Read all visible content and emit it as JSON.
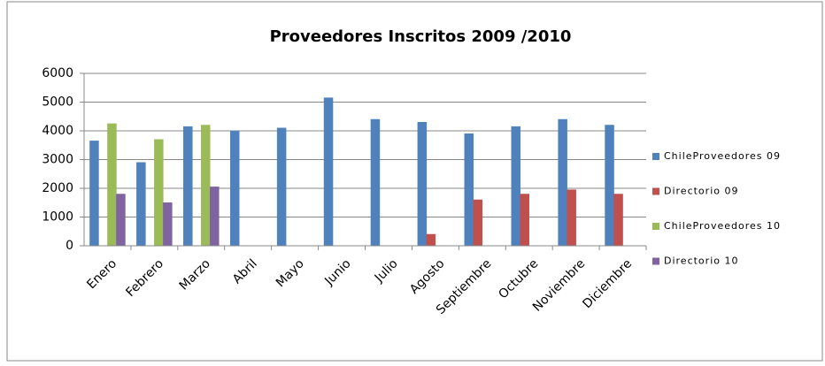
{
  "chart_data": {
    "type": "bar",
    "title": "Proveedores Inscritos 2009 /2010",
    "categories": [
      "Enero",
      "Febrero",
      "Marzo",
      "Abril",
      "Mayo",
      "Junio",
      "Julio",
      "Agosto",
      "Septiembre",
      "Octubre",
      "Noviembre",
      "Diciembre"
    ],
    "series": [
      {
        "name": "ChileProveedores 09",
        "color": "#4f81bd",
        "values": [
          3650,
          2900,
          4150,
          4000,
          4100,
          5150,
          4400,
          4300,
          3900,
          4150,
          4400,
          4200
        ]
      },
      {
        "name": "Directorio 09",
        "color": "#c0504d",
        "values": [
          null,
          null,
          null,
          null,
          null,
          null,
          null,
          400,
          1600,
          1800,
          1950,
          1800
        ]
      },
      {
        "name": "ChileProveedores 10",
        "color": "#9bbb59",
        "values": [
          4250,
          3700,
          4200,
          null,
          null,
          null,
          null,
          null,
          null,
          null,
          null,
          null
        ]
      },
      {
        "name": "Directorio 10",
        "color": "#8064a2",
        "values": [
          1800,
          1500,
          2050,
          null,
          null,
          null,
          null,
          null,
          null,
          null,
          null,
          null
        ]
      }
    ],
    "ylim": [
      0,
      6000
    ],
    "yticks": [
      0,
      1000,
      2000,
      3000,
      4000,
      5000,
      6000
    ],
    "grid": true,
    "legend": "right"
  }
}
